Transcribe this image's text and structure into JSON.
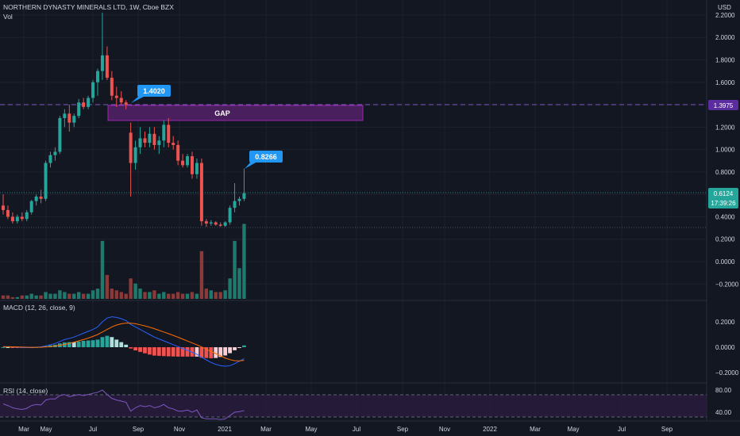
{
  "header": {
    "symbol_line": "NORTHERN DYNASTY MINERALS LTD, 1W, Cboe BZX",
    "vol_label": "Vol",
    "currency": "USD"
  },
  "colors": {
    "background": "#131722",
    "up": "#26a69a",
    "down": "#ef5350",
    "vol_up": "#1f7a6e",
    "vol_down": "#8b3a3a",
    "macd_line": "#2962ff",
    "macd_signal": "#ff6d00",
    "rsi_line": "#7e57c2",
    "gap_fill": "#4a1f5e",
    "gap_border": "#9c27b0",
    "label_blue": "#2196f3",
    "last_price_badge": "#26a69a",
    "hline_price_badge": "#5b2c9e"
  },
  "annotations": {
    "gap_label": "GAP",
    "callout_high": "1.4020",
    "callout_recent": "0.8266",
    "hline_value": "1.3975",
    "last_price": "0.6124",
    "countdown": "17:39:26"
  },
  "price_axis": {
    "ticks": [
      "2.2000",
      "2.0000",
      "1.8000",
      "1.6000",
      "1.4000",
      "1.2000",
      "1.0000",
      "0.8000",
      "0.6000",
      "0.4000",
      "0.2000",
      "0.0000",
      "−0.2000"
    ]
  },
  "macd_panel": {
    "label": "MACD (12, 26, close, 9)",
    "ticks": [
      "0.2000",
      "0.0000",
      "−0.2000"
    ]
  },
  "rsi_panel": {
    "label": "RSI (14, close)",
    "ticks": [
      "80.00",
      "40.00"
    ]
  },
  "time_axis": {
    "labels": [
      "Mar",
      "May",
      "Jul",
      "Sep",
      "Nov",
      "2021",
      "Mar",
      "May",
      "Jul",
      "Sep",
      "Nov",
      "2022",
      "Mar",
      "May",
      "Jul",
      "Sep"
    ]
  },
  "chart_data": {
    "type": "candlestick",
    "title": "NORTHERN DYNASTY MINERALS LTD, 1W, Cboe BZX",
    "ylim": [
      -0.3,
      2.28
    ],
    "candles": [
      {
        "o": 0.5,
        "h": 0.6,
        "l": 0.42,
        "c": 0.46
      },
      {
        "o": 0.46,
        "h": 0.5,
        "l": 0.38,
        "c": 0.4
      },
      {
        "o": 0.4,
        "h": 0.44,
        "l": 0.34,
        "c": 0.36
      },
      {
        "o": 0.36,
        "h": 0.42,
        "l": 0.34,
        "c": 0.4
      },
      {
        "o": 0.4,
        "h": 0.44,
        "l": 0.36,
        "c": 0.38
      },
      {
        "o": 0.38,
        "h": 0.46,
        "l": 0.36,
        "c": 0.44
      },
      {
        "o": 0.44,
        "h": 0.55,
        "l": 0.42,
        "c": 0.54
      },
      {
        "o": 0.54,
        "h": 0.6,
        "l": 0.5,
        "c": 0.58
      },
      {
        "o": 0.58,
        "h": 0.64,
        "l": 0.52,
        "c": 0.56
      },
      {
        "o": 0.56,
        "h": 0.9,
        "l": 0.54,
        "c": 0.88
      },
      {
        "o": 0.88,
        "h": 0.98,
        "l": 0.84,
        "c": 0.95
      },
      {
        "o": 0.95,
        "h": 1.02,
        "l": 0.9,
        "c": 0.98
      },
      {
        "o": 0.98,
        "h": 1.3,
        "l": 0.96,
        "c": 1.28
      },
      {
        "o": 1.28,
        "h": 1.36,
        "l": 1.2,
        "c": 1.32
      },
      {
        "o": 1.32,
        "h": 1.4,
        "l": 1.16,
        "c": 1.24
      },
      {
        "o": 1.24,
        "h": 1.32,
        "l": 1.2,
        "c": 1.3
      },
      {
        "o": 1.3,
        "h": 1.45,
        "l": 1.28,
        "c": 1.42
      },
      {
        "o": 1.42,
        "h": 1.46,
        "l": 1.36,
        "c": 1.38
      },
      {
        "o": 1.38,
        "h": 1.48,
        "l": 1.36,
        "c": 1.46
      },
      {
        "o": 1.46,
        "h": 1.62,
        "l": 1.42,
        "c": 1.6
      },
      {
        "o": 1.6,
        "h": 1.72,
        "l": 1.48,
        "c": 1.7
      },
      {
        "o": 1.7,
        "h": 2.22,
        "l": 1.62,
        "c": 1.84
      },
      {
        "o": 1.84,
        "h": 1.92,
        "l": 1.62,
        "c": 1.64
      },
      {
        "o": 1.64,
        "h": 1.7,
        "l": 1.44,
        "c": 1.48
      },
      {
        "o": 1.48,
        "h": 1.56,
        "l": 1.38,
        "c": 1.46
      },
      {
        "o": 1.46,
        "h": 1.52,
        "l": 1.4,
        "c": 1.42
      },
      {
        "o": 1.42,
        "h": 1.44,
        "l": 1.36,
        "c": 1.4
      },
      {
        "o": 1.15,
        "h": 1.24,
        "l": 0.58,
        "c": 0.88
      },
      {
        "o": 0.88,
        "h": 1.08,
        "l": 0.82,
        "c": 1.02
      },
      {
        "o": 1.02,
        "h": 1.2,
        "l": 0.96,
        "c": 1.1
      },
      {
        "o": 1.1,
        "h": 1.16,
        "l": 1.02,
        "c": 1.06
      },
      {
        "o": 1.06,
        "h": 1.2,
        "l": 1.02,
        "c": 1.14
      },
      {
        "o": 1.14,
        "h": 1.2,
        "l": 1.0,
        "c": 1.04
      },
      {
        "o": 1.04,
        "h": 1.12,
        "l": 0.96,
        "c": 1.08
      },
      {
        "o": 1.08,
        "h": 1.26,
        "l": 1.02,
        "c": 1.22
      },
      {
        "o": 1.22,
        "h": 1.28,
        "l": 1.02,
        "c": 1.06
      },
      {
        "o": 1.06,
        "h": 1.12,
        "l": 1.0,
        "c": 1.04
      },
      {
        "o": 1.04,
        "h": 1.08,
        "l": 0.86,
        "c": 0.9
      },
      {
        "o": 0.9,
        "h": 0.96,
        "l": 0.84,
        "c": 0.86
      },
      {
        "o": 0.86,
        "h": 0.96,
        "l": 0.84,
        "c": 0.94
      },
      {
        "o": 0.94,
        "h": 0.98,
        "l": 0.74,
        "c": 0.78
      },
      {
        "o": 0.78,
        "h": 0.92,
        "l": 0.74,
        "c": 0.88
      },
      {
        "o": 0.88,
        "h": 0.92,
        "l": 0.32,
        "c": 0.36
      },
      {
        "o": 0.36,
        "h": 0.38,
        "l": 0.31,
        "c": 0.34
      },
      {
        "o": 0.34,
        "h": 0.37,
        "l": 0.32,
        "c": 0.35
      },
      {
        "o": 0.35,
        "h": 0.36,
        "l": 0.32,
        "c": 0.33
      },
      {
        "o": 0.33,
        "h": 0.35,
        "l": 0.31,
        "c": 0.32
      },
      {
        "o": 0.32,
        "h": 0.36,
        "l": 0.31,
        "c": 0.35
      },
      {
        "o": 0.35,
        "h": 0.5,
        "l": 0.33,
        "c": 0.48
      },
      {
        "o": 0.48,
        "h": 0.7,
        "l": 0.44,
        "c": 0.54
      },
      {
        "o": 0.54,
        "h": 0.58,
        "l": 0.5,
        "c": 0.56
      },
      {
        "o": 0.56,
        "h": 0.83,
        "l": 0.54,
        "c": 0.61
      }
    ],
    "volume": [
      0.02,
      0.02,
      0.01,
      0.01,
      0.02,
      0.02,
      0.03,
      0.02,
      0.02,
      0.04,
      0.03,
      0.03,
      0.05,
      0.04,
      0.03,
      0.03,
      0.04,
      0.03,
      0.03,
      0.05,
      0.06,
      0.34,
      0.14,
      0.06,
      0.05,
      0.04,
      0.03,
      0.12,
      0.09,
      0.06,
      0.04,
      0.04,
      0.05,
      0.03,
      0.04,
      0.03,
      0.03,
      0.04,
      0.03,
      0.03,
      0.04,
      0.03,
      0.28,
      0.06,
      0.05,
      0.04,
      0.04,
      0.05,
      0.12,
      0.34,
      0.18,
      0.44
    ],
    "macd": {
      "macd_line": [
        0.005,
        0.004,
        0.002,
        0.0,
        -0.002,
        -0.003,
        -0.002,
        0.0,
        0.003,
        0.01,
        0.02,
        0.03,
        0.045,
        0.06,
        0.07,
        0.08,
        0.095,
        0.11,
        0.125,
        0.14,
        0.16,
        0.2,
        0.23,
        0.24,
        0.235,
        0.225,
        0.21,
        0.18,
        0.16,
        0.14,
        0.12,
        0.1,
        0.08,
        0.065,
        0.05,
        0.035,
        0.02,
        0.005,
        -0.01,
        -0.025,
        -0.04,
        -0.055,
        -0.08,
        -0.1,
        -0.12,
        -0.135,
        -0.145,
        -0.15,
        -0.145,
        -0.13,
        -0.11,
        -0.09
      ],
      "signal_line": [
        0.004,
        0.004,
        0.003,
        0.002,
        0.001,
        0.0,
        -0.001,
        -0.001,
        0.0,
        0.002,
        0.005,
        0.01,
        0.015,
        0.022,
        0.03,
        0.04,
        0.05,
        0.06,
        0.072,
        0.085,
        0.1,
        0.12,
        0.14,
        0.16,
        0.175,
        0.185,
        0.19,
        0.19,
        0.185,
        0.177,
        0.168,
        0.158,
        0.146,
        0.133,
        0.12,
        0.107,
        0.093,
        0.079,
        0.064,
        0.049,
        0.034,
        0.019,
        0.003,
        -0.015,
        -0.033,
        -0.05,
        -0.068,
        -0.085,
        -0.098,
        -0.106,
        -0.108,
        -0.104
      ]
    },
    "rsi": [
      55,
      52,
      48,
      46,
      45,
      47,
      52,
      54,
      53,
      62,
      64,
      64,
      70,
      72,
      68,
      70,
      72,
      70,
      72,
      74,
      76,
      80,
      72,
      65,
      62,
      60,
      58,
      42,
      48,
      52,
      50,
      52,
      48,
      50,
      54,
      48,
      46,
      42,
      42,
      44,
      40,
      44,
      30,
      28,
      28,
      28,
      27,
      28,
      34,
      40,
      41,
      43
    ],
    "rsi_levels": [
      70,
      30
    ]
  }
}
